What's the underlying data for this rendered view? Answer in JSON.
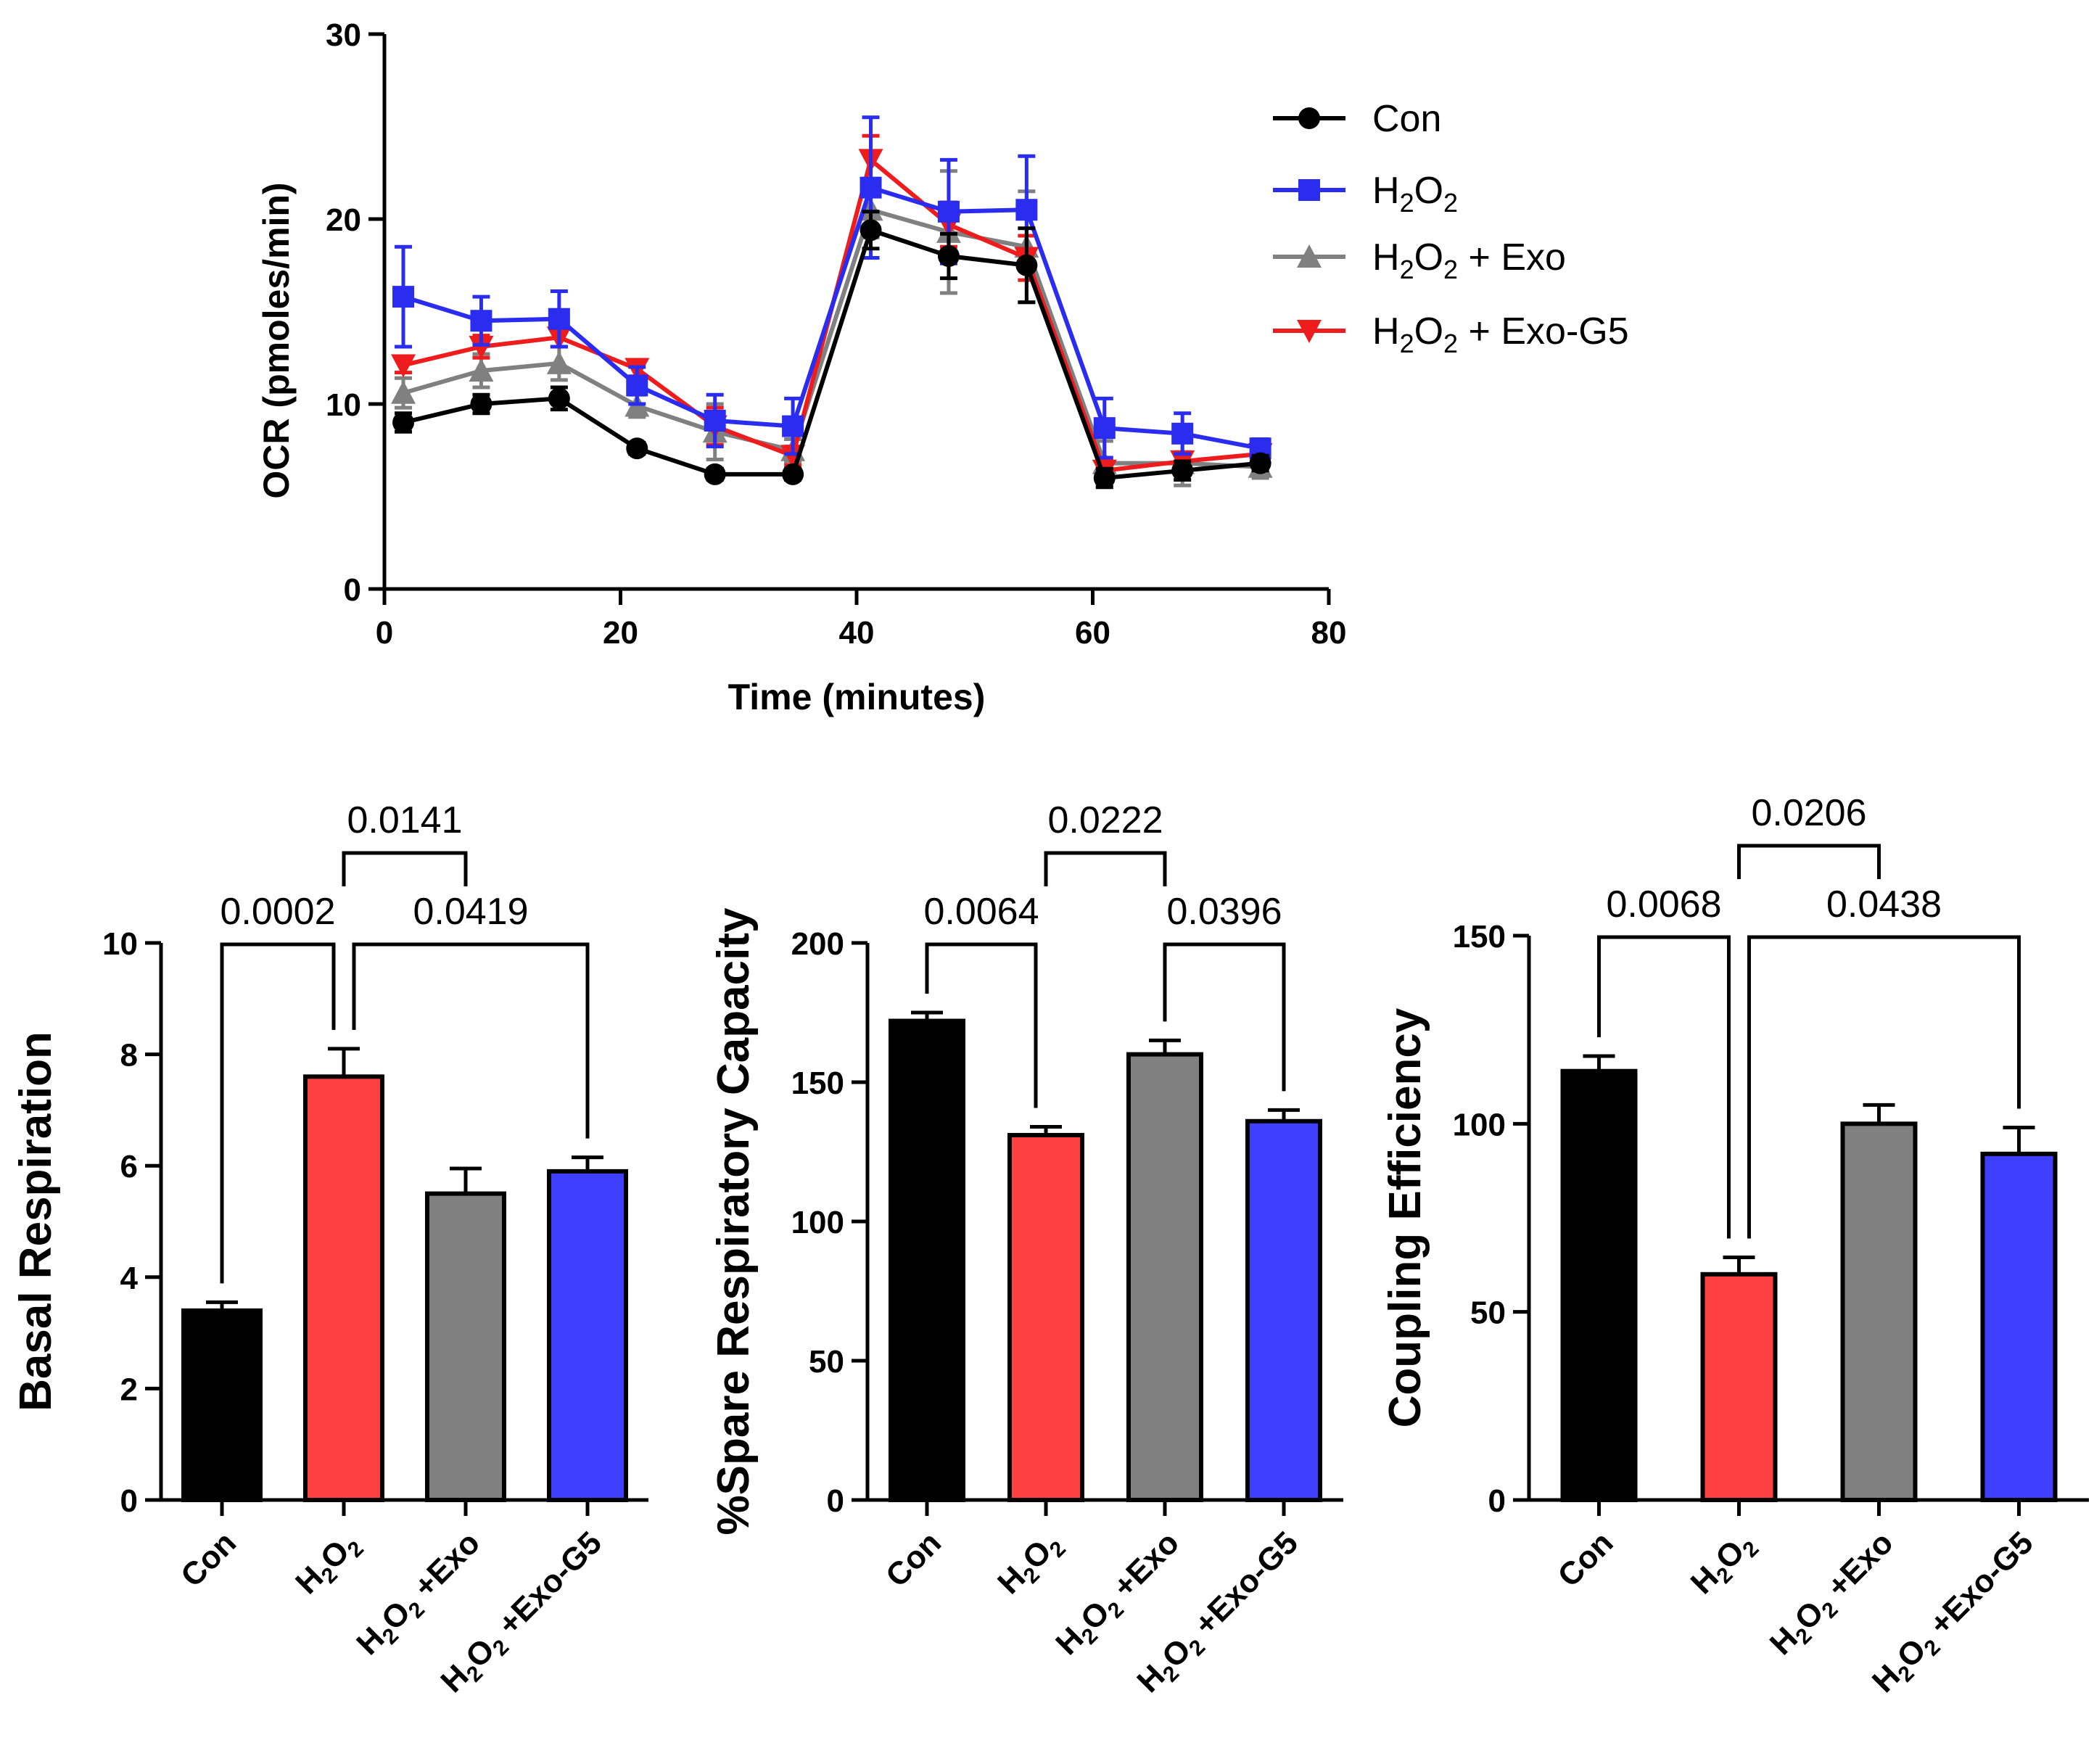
{
  "colors": {
    "con": "#000000",
    "h2o2": "#2a2cf0",
    "exo": "#808080",
    "exo_g5": "#ee1c1c",
    "bar_red": "#ff4040",
    "bar_gray": "#808080",
    "bar_blue": "#3f3fff",
    "bar_black": "#000000"
  },
  "chart_data": [
    {
      "id": "ocr",
      "type": "line",
      "xlabel": "Time (minutes)",
      "ylabel": "OCR (pmoles/min)",
      "xlim": [
        0,
        80
      ],
      "ylim": [
        0,
        30
      ],
      "xticks": [
        "0",
        "20",
        "40",
        "60",
        "80"
      ],
      "yticks": [
        "0",
        "10",
        "20",
        "30"
      ],
      "x": [
        1.6,
        8.2,
        14.8,
        21.4,
        28.0,
        34.6,
        41.2,
        47.8,
        54.4,
        61.0,
        67.6,
        74.2
      ],
      "series": [
        {
          "name": "Con",
          "marker": "circle",
          "color_key": "con",
          "values": [
            9.0,
            10.0,
            10.3,
            7.6,
            6.2,
            6.2,
            19.4,
            18.0,
            17.5,
            6.0,
            6.4,
            6.8
          ],
          "errors": [
            0.5,
            0.5,
            0.6,
            0.3,
            0.3,
            0.3,
            1.0,
            1.2,
            2.0,
            0.5,
            0.5,
            0.4
          ]
        },
        {
          "name": "H2O2",
          "marker": "square",
          "color_key": "h2o2",
          "values": [
            15.8,
            14.5,
            14.6,
            11.0,
            9.1,
            8.8,
            21.7,
            20.4,
            20.5,
            8.7,
            8.4,
            7.6
          ],
          "errors": [
            2.7,
            1.3,
            1.5,
            1.0,
            1.4,
            1.5,
            3.8,
            2.8,
            2.9,
            1.6,
            1.1,
            0.5
          ]
        },
        {
          "name": "H2O2 + Exo",
          "marker": "triangle-up",
          "color_key": "exo",
          "values": [
            10.6,
            11.8,
            12.2,
            9.9,
            8.5,
            7.5,
            20.5,
            19.3,
            18.5,
            6.8,
            6.8,
            6.6
          ],
          "errors": [
            0.8,
            0.9,
            0.9,
            0.6,
            1.5,
            0.6,
            1.5,
            3.3,
            3.0,
            1.2,
            1.2,
            0.6
          ]
        },
        {
          "name": "H2O2 + Exo-G5",
          "marker": "triangle-down",
          "color_key": "exo_g5",
          "values": [
            12.1,
            13.1,
            13.6,
            11.9,
            8.8,
            7.2,
            23.2,
            19.7,
            17.9,
            6.4,
            6.9,
            7.3
          ],
          "errors": [
            0.4,
            0.6,
            0.5,
            0.4,
            1.0,
            0.5,
            1.3,
            1.2,
            1.2,
            0.5,
            0.5,
            0.4
          ]
        }
      ],
      "legend": [
        {
          "base": "Con",
          "sub1": "",
          "mid": "",
          "sub2": "",
          "tail": ""
        },
        {
          "base": "H",
          "sub1": "2",
          "mid": "O",
          "sub2": "2",
          "tail": ""
        },
        {
          "base": "H",
          "sub1": "2",
          "mid": "O",
          "sub2": "2",
          "tail": " + Exo"
        },
        {
          "base": "H",
          "sub1": "2",
          "mid": "O",
          "sub2": "2",
          "tail": " + Exo-G5"
        }
      ]
    },
    {
      "id": "basal",
      "type": "bar",
      "ylabel": "Basal Respiration",
      "ylim": [
        0,
        10
      ],
      "yticks": [
        "0",
        "2",
        "4",
        "6",
        "8",
        "10"
      ],
      "categories": [
        "Con",
        "H2O2",
        "H2O2 +Exo",
        "H2O2 +Exo-G5"
      ],
      "values": [
        3.4,
        7.6,
        5.5,
        5.9
      ],
      "errors": [
        0.15,
        0.5,
        0.45,
        0.25
      ],
      "bar_colors": [
        "bar_black",
        "bar_red",
        "bar_gray",
        "bar_blue"
      ],
      "comparisons": [
        {
          "pair": [
            0,
            1
          ],
          "p": "0.0002",
          "level": 0
        },
        {
          "pair": [
            1,
            3
          ],
          "p": "0.0419",
          "level": 0
        },
        {
          "pair": [
            1,
            2
          ],
          "p": "0.0141",
          "level": 1
        }
      ]
    },
    {
      "id": "spare",
      "type": "bar",
      "ylabel": "%Spare Respiratory Capacity",
      "ylim": [
        0,
        200
      ],
      "yticks": [
        "0",
        "50",
        "100",
        "150",
        "200"
      ],
      "categories": [
        "Con",
        "H2O2",
        "H2O2 +Exo",
        "H2O2 +Exo-G5"
      ],
      "values": [
        172,
        131,
        160,
        136
      ],
      "errors": [
        3,
        3,
        5,
        4
      ],
      "bar_colors": [
        "bar_black",
        "bar_red",
        "bar_gray",
        "bar_blue"
      ],
      "comparisons": [
        {
          "pair": [
            0,
            1
          ],
          "p": "0.0064",
          "level": 0
        },
        {
          "pair": [
            2,
            3
          ],
          "p": "0.0396",
          "level": 0
        },
        {
          "pair": [
            1,
            2
          ],
          "p": "0.0222",
          "level": 1
        }
      ]
    },
    {
      "id": "coupling",
      "type": "bar",
      "ylabel": "Coupling Efficiency",
      "ylim": [
        0,
        150
      ],
      "yticks": [
        "0",
        "50",
        "100",
        "150"
      ],
      "categories": [
        "Con",
        "H2O2",
        "H2O2 +Exo",
        "H2O2 +Exo-G5"
      ],
      "values": [
        114,
        60,
        100,
        92
      ],
      "errors": [
        4,
        4.5,
        5,
        7
      ],
      "bar_colors": [
        "bar_black",
        "bar_red",
        "bar_gray",
        "bar_blue"
      ],
      "comparisons": [
        {
          "pair": [
            0,
            1
          ],
          "p": "0.0068",
          "level": 0
        },
        {
          "pair": [
            1,
            3
          ],
          "p": "0.0438",
          "level": 0
        },
        {
          "pair": [
            1,
            2
          ],
          "p": "0.0206",
          "level": 1
        }
      ]
    }
  ]
}
